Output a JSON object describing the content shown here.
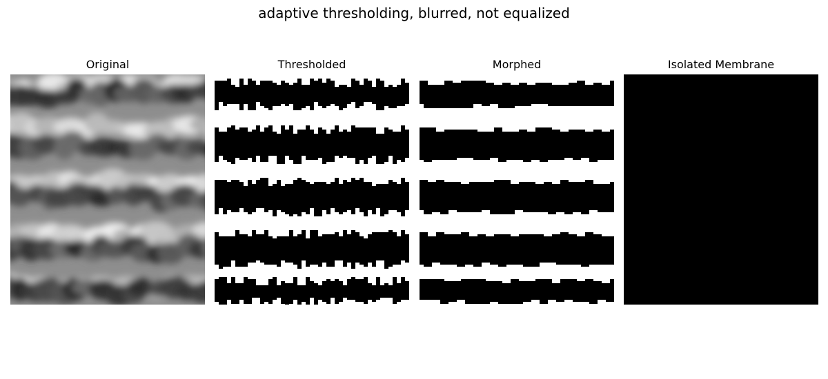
{
  "figure": {
    "title": "adaptive thresholding, blurred, not equalized"
  },
  "panels": [
    {
      "title": "Original",
      "image": "grayscale-membrane-stack"
    },
    {
      "title": "Thresholded",
      "image": "binary-threshold-mask"
    },
    {
      "title": "Morphed",
      "image": "binary-morphed-mask"
    },
    {
      "title": "Isolated Membrane",
      "image": "masked-membrane-grayscale"
    }
  ]
}
